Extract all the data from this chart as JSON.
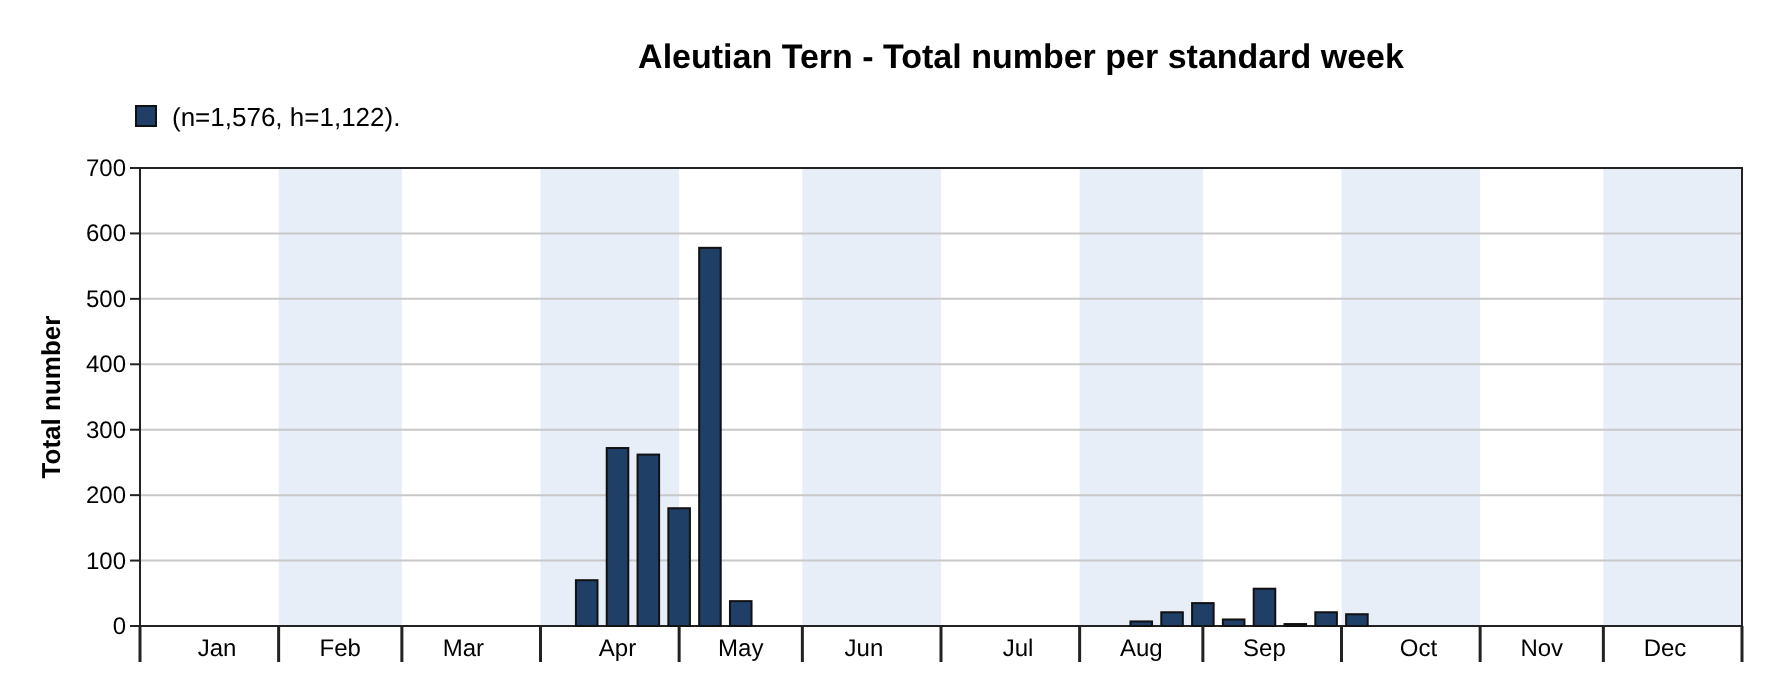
{
  "chart_data": {
    "type": "bar",
    "title": "Aleutian Tern - Total number per standard week",
    "ylabel": "Total number",
    "categories": [
      null,
      null,
      "Jan",
      null,
      null,
      null,
      "Feb",
      null,
      null,
      null,
      "Mar",
      null,
      null,
      null,
      null,
      "Apr",
      null,
      null,
      null,
      "May",
      null,
      null,
      null,
      "Jun",
      null,
      null,
      null,
      null,
      "Jul",
      null,
      null,
      null,
      "Aug",
      null,
      null,
      null,
      "Sep",
      null,
      null,
      null,
      null,
      "Oct",
      null,
      null,
      null,
      "Nov",
      null,
      null,
      null,
      "Dec",
      null,
      null
    ],
    "series": [
      {
        "name": "(n=1,576, h=1,122).",
        "color": "#1f3f66",
        "values": [
          0,
          0,
          0,
          0,
          0,
          0,
          0,
          0,
          0,
          0,
          0,
          0,
          0,
          0,
          70,
          272,
          262,
          180,
          578,
          38,
          0,
          0,
          0,
          0,
          0,
          0,
          0,
          0,
          0,
          0,
          0,
          0,
          7,
          21,
          35,
          10,
          57,
          3,
          21,
          18,
          0,
          0,
          0,
          0,
          0,
          0,
          0,
          0,
          0,
          0,
          0,
          0
        ]
      }
    ],
    "ylim": [
      0,
      700
    ],
    "yticks": [
      0,
      100,
      200,
      300,
      400,
      500,
      600,
      700
    ],
    "grid": "y",
    "legend": "top left"
  }
}
